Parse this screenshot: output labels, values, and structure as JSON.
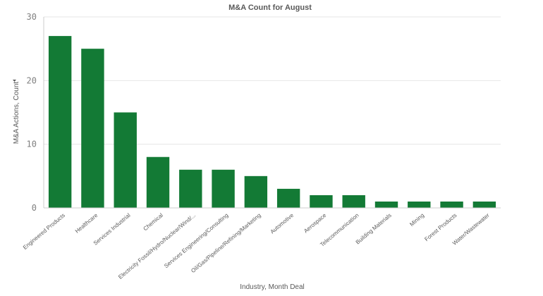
{
  "colors": {
    "bar": "#137a35"
  },
  "icons": {
    "axis_menu": "chevron-down-icon"
  },
  "chart_data": {
    "type": "bar",
    "title": "M&A Count for August",
    "xlabel": "Industry,  Month Deal",
    "ylabel": "M&A Actions, Count",
    "ylim": [
      0,
      30
    ],
    "yticks": [
      0,
      10,
      20,
      30
    ],
    "grid": true,
    "legend": "none",
    "categories": [
      "Engineered Products",
      "Healthcare",
      "Services Industrial",
      "Chemical",
      "Electricity Fossil/Hydro/Nuclear/Wind/...",
      "Services Engineering/Consulting",
      "Oil/Gas/Pipeline/Refining/Marketing",
      "Automotive",
      "Aerospace",
      "Telecommunication",
      "Building Materials",
      "Mining",
      "Forest Products",
      "Water/Wastewater"
    ],
    "values": [
      27,
      25,
      15,
      8,
      6,
      6,
      5,
      3,
      2,
      2,
      1,
      1,
      1,
      1
    ]
  }
}
